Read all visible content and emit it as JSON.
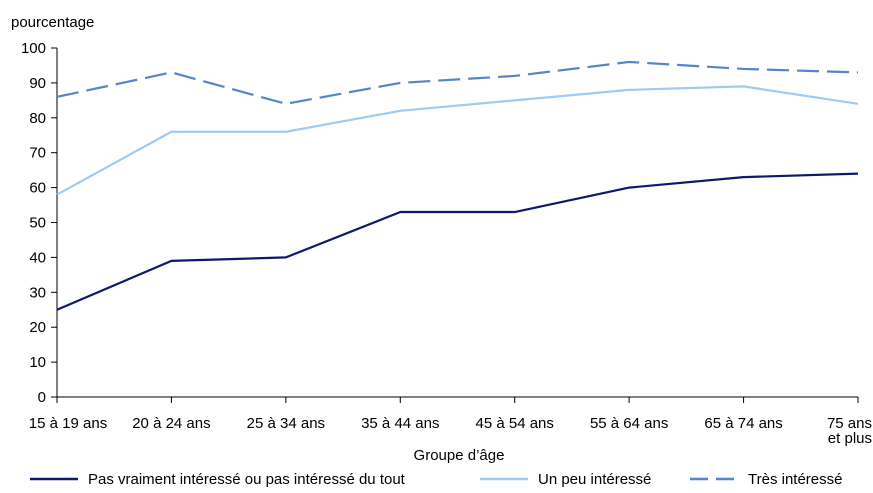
{
  "chart_data": {
    "type": "line",
    "ylabel": "pourcentage",
    "xlabel": "Groupe d’âge",
    "ylim": [
      0,
      100
    ],
    "yticks": [
      0,
      10,
      20,
      30,
      40,
      50,
      60,
      70,
      80,
      90,
      100
    ],
    "categories": [
      [
        "15 à 19 ans"
      ],
      [
        "20 à 24 ans"
      ],
      [
        "25 à 34 ans"
      ],
      [
        "35 à 44 ans"
      ],
      [
        "45 à 54 ans"
      ],
      [
        "55 à 64 ans"
      ],
      [
        "65 à 74 ans"
      ],
      [
        "75 ans",
        "et plus"
      ]
    ],
    "series": [
      {
        "name": "Pas vraiment intéressé ou pas intéressé du tout",
        "color": "#0d1a6b",
        "dash": "solid",
        "values": [
          25,
          39,
          40,
          53,
          53,
          60,
          63,
          64
        ]
      },
      {
        "name": "Un peu intéressé",
        "color": "#9dcbf5",
        "dash": "solid",
        "values": [
          58,
          76,
          76,
          82,
          85,
          88,
          89,
          84
        ]
      },
      {
        "name": "Très intéressé",
        "color": "#5585c8",
        "dash": "dashed",
        "values": [
          86,
          93,
          84,
          90,
          92,
          96,
          94,
          93
        ]
      }
    ],
    "grid": false,
    "legend_position": "bottom"
  }
}
